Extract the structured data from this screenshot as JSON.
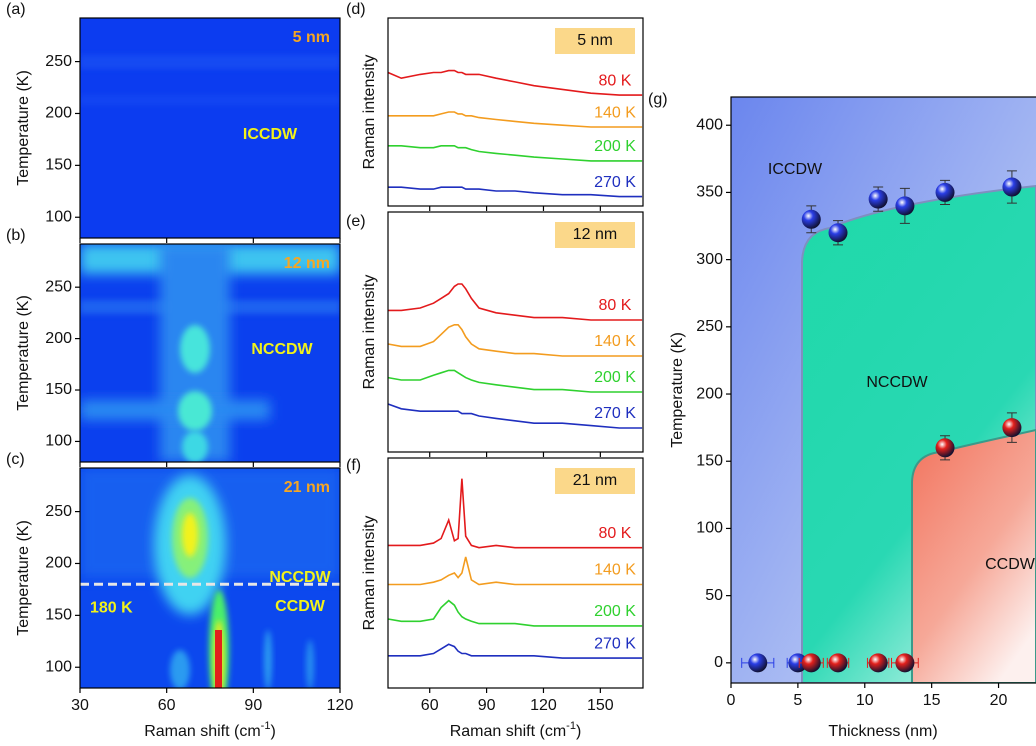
{
  "chart_data": [
    {
      "type": "heatmap",
      "panel": "(a)",
      "label": "5 nm",
      "annotations": [
        "ICCDW"
      ],
      "y_label": "Temperature (K)",
      "xlim": [
        30,
        120
      ],
      "xticks": [
        30,
        60,
        90,
        120
      ],
      "ylim": [
        80,
        292
      ],
      "yticks": [
        100,
        150,
        200,
        250
      ]
    },
    {
      "type": "heatmap",
      "panel": "(b)",
      "label": "12 nm",
      "annotations": [
        "NCCDW"
      ],
      "y_label": "Temperature (K)",
      "xlim": [
        30,
        120
      ],
      "xticks": [
        30,
        60,
        90,
        120
      ],
      "ylim": [
        80,
        292
      ],
      "yticks": [
        100,
        150,
        200,
        250
      ]
    },
    {
      "type": "heatmap",
      "panel": "(c)",
      "label": "21 nm",
      "annotations": [
        "NCCDW",
        "CCDW"
      ],
      "y_label": "Temperature (K)",
      "x_label": [
        "Raman shift (cm",
        "-1",
        ")"
      ],
      "threshold": {
        "value": 180,
        "label": "180 K"
      },
      "xlim": [
        30,
        120
      ],
      "xticks": [
        30,
        60,
        90,
        120
      ],
      "ylim": [
        80,
        292
      ],
      "yticks": [
        100,
        150,
        200,
        250
      ]
    },
    {
      "type": "line",
      "panel": "(d)",
      "label": "5 nm",
      "y_label": "Raman intensity",
      "x": [
        38,
        45,
        55,
        62,
        66,
        70,
        73,
        75,
        77,
        79,
        82,
        86,
        95,
        105,
        115,
        130,
        145,
        160,
        172
      ],
      "xlim": [
        38,
        172.5
      ],
      "xticks": [
        60,
        90,
        120,
        150
      ],
      "ylim": [
        0,
        100
      ],
      "series": [
        {
          "name": "80 K",
          "color": "#e31a1c",
          "values": [
            71,
            68,
            70,
            71,
            71,
            72,
            72,
            71,
            71,
            70,
            70,
            70,
            68,
            66,
            64,
            62,
            60,
            59,
            59
          ]
        },
        {
          "name": "140 K",
          "color": "#f39c1f",
          "values": [
            48,
            48,
            48,
            48,
            49,
            50,
            50,
            49,
            49,
            48,
            48,
            47,
            46,
            45,
            44,
            43,
            42,
            42,
            42
          ]
        },
        {
          "name": "200 K",
          "color": "#2fd12f",
          "values": [
            32,
            32,
            31,
            31,
            32,
            32,
            32,
            31,
            31,
            31,
            30,
            29,
            28,
            27,
            26,
            25,
            24,
            24,
            24
          ]
        },
        {
          "name": "270 K",
          "color": "#1f2fbf",
          "values": [
            10,
            10,
            9,
            9,
            10,
            10,
            10,
            10,
            10,
            9,
            9,
            9,
            8,
            8,
            7,
            6,
            6,
            5,
            5
          ]
        }
      ]
    },
    {
      "type": "line",
      "panel": "(e)",
      "label": "12 nm",
      "y_label": "Raman intensity",
      "x": [
        38,
        45,
        55,
        62,
        66,
        70,
        73,
        75,
        77,
        79,
        82,
        86,
        95,
        105,
        115,
        130,
        145,
        160,
        172
      ],
      "xlim": [
        38,
        172.5
      ],
      "xticks": [
        60,
        90,
        120,
        150
      ],
      "ylim": [
        0,
        100
      ],
      "series": [
        {
          "name": "80 K",
          "color": "#e31a1c",
          "values": [
            59,
            59,
            60,
            62,
            64,
            66,
            69,
            70,
            70,
            68,
            64,
            60,
            58,
            57,
            56,
            56,
            55,
            55,
            55
          ]
        },
        {
          "name": "140 K",
          "color": "#f39c1f",
          "values": [
            45,
            44,
            44,
            46,
            49,
            52,
            53,
            53,
            51,
            48,
            45,
            43,
            42,
            41,
            41,
            40,
            40,
            40,
            40
          ]
        },
        {
          "name": "200 K",
          "color": "#2fd12f",
          "values": [
            31,
            30,
            30,
            32,
            33,
            34,
            34,
            33,
            32,
            31,
            30,
            29,
            28,
            27,
            26,
            26,
            25,
            25,
            25
          ]
        },
        {
          "name": "270 K",
          "color": "#1f2fbf",
          "values": [
            20,
            18,
            17,
            17,
            17,
            17,
            17,
            17,
            16,
            16,
            16,
            15,
            14,
            13,
            12,
            12,
            11,
            10,
            10
          ]
        }
      ]
    },
    {
      "type": "line",
      "panel": "(f)",
      "label": "21 nm",
      "y_label": "Raman intensity",
      "x_label": [
        "Raman shift (cm",
        "-1",
        ")"
      ],
      "x": [
        38,
        45,
        55,
        62,
        66,
        70,
        73,
        75,
        77,
        79,
        82,
        86,
        95,
        105,
        115,
        130,
        145,
        160,
        172
      ],
      "xlim": [
        38,
        172.5
      ],
      "xticks": [
        60,
        90,
        120,
        150
      ],
      "ylim": [
        0,
        100
      ],
      "series": [
        {
          "name": "80 K",
          "color": "#e31a1c",
          "values": [
            62,
            62,
            62,
            63,
            65,
            73,
            64,
            65,
            91,
            66,
            62,
            61,
            62,
            61,
            61,
            61,
            61,
            61,
            61
          ]
        },
        {
          "name": "140 K",
          "color": "#f39c1f",
          "values": [
            45,
            45,
            45,
            46,
            47,
            49,
            50,
            48,
            50,
            57,
            47,
            45,
            46,
            45,
            45,
            45,
            45,
            45,
            45
          ]
        },
        {
          "name": "200 K",
          "color": "#2fd12f",
          "values": [
            30,
            29,
            29,
            30,
            35,
            38,
            36,
            33,
            31,
            30,
            29,
            28,
            28,
            28,
            27,
            27,
            27,
            27,
            27
          ]
        },
        {
          "name": "270 K",
          "color": "#1f2fbf",
          "values": [
            14,
            14,
            14,
            15,
            17,
            19,
            18,
            16,
            15,
            15,
            14,
            14,
            14,
            14,
            14,
            13,
            13,
            13,
            13
          ]
        }
      ]
    },
    {
      "type": "scatter",
      "panel": "(g)",
      "x_label": "Thickness (nm)",
      "y_label": "Temperature (K)",
      "annotations": [
        "ICCDW",
        "NCCDW",
        "CCDW"
      ],
      "xlim": [
        0,
        22.8
      ],
      "xticks": [
        0,
        5,
        10,
        15,
        20
      ],
      "ylim": [
        -15,
        421
      ],
      "yticks": [
        0,
        50,
        100,
        150,
        200,
        250,
        300,
        350,
        400
      ],
      "series": [
        {
          "color": "#2a3ee6",
          "x": [
            2,
            5,
            6,
            8,
            11,
            13,
            16,
            21
          ],
          "values": [
            0,
            0,
            330,
            320,
            345,
            340,
            350,
            354
          ],
          "yerr": [
            null,
            null,
            10,
            9,
            9,
            13,
            9,
            12
          ],
          "xerr": [
            1.2,
            0.8,
            null,
            null,
            null,
            null,
            null,
            null
          ]
        },
        {
          "color": "#e3201c",
          "x": [
            6,
            8,
            11,
            13,
            16,
            21
          ],
          "values": [
            0,
            0,
            0,
            0,
            160,
            175
          ],
          "yerr": [
            null,
            null,
            null,
            null,
            9,
            11
          ],
          "xerr": [
            0.9,
            0.8,
            0.8,
            1.0,
            null,
            null
          ]
        }
      ]
    }
  ]
}
